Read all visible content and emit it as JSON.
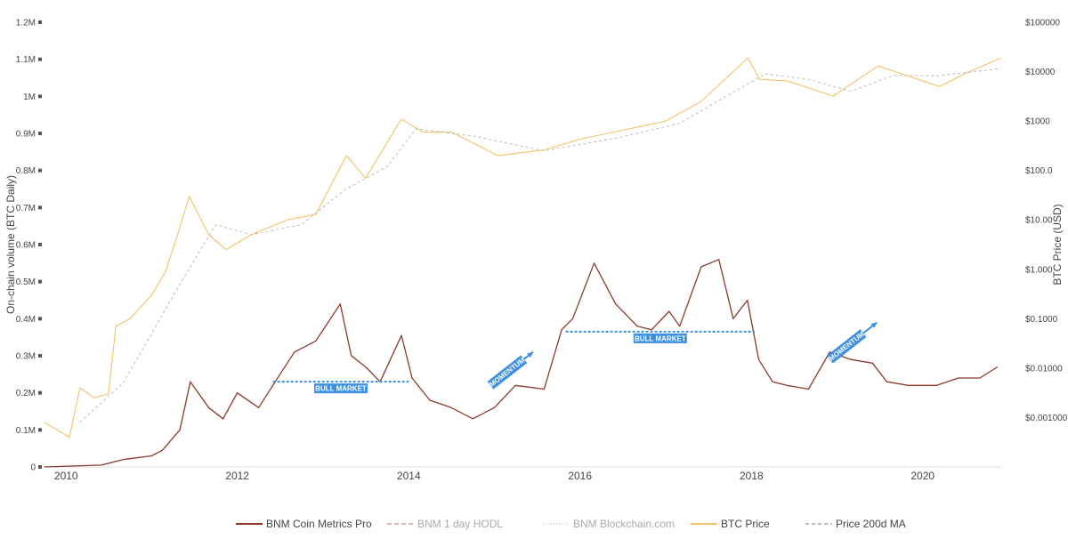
{
  "chart_data": {
    "type": "line",
    "title": "",
    "y_left_label": "On-chain volume (BTC Daily)",
    "y_right_label": "BTC Price (USD)",
    "x_range": [
      "2009-10-01",
      "2020-12-01"
    ],
    "x_ticks": [
      "2010",
      "2012",
      "2014",
      "2016",
      "2018",
      "2020"
    ],
    "y_left_range": [
      0,
      1200000
    ],
    "y_left_ticks": [
      "0",
      "0.1M",
      "0.2M",
      "0.3M",
      "0.4M",
      "0.5M",
      "0.6M",
      "0.7M",
      "0.8M",
      "0.9M",
      "1M",
      "1.1M",
      "1.2M"
    ],
    "y_right_scale": "log",
    "y_right_range": [
      0.0001,
      100000
    ],
    "y_right_ticks": [
      "$0.001000",
      "$0.01000",
      "$0.1000",
      "$1.000",
      "$10.00",
      "$100.0",
      "$1000",
      "$10000",
      "$100000"
    ],
    "grid": false,
    "legend_position": "bottom",
    "colors": {
      "bnm_coin_metrics": "#8b3a2a",
      "btc_price": "#f3c26b",
      "price_200d": "#bbbbbb",
      "annotation": "#3d8fe0"
    },
    "series": [
      {
        "name": "BNM Coin Metrics Pro",
        "axis": "left",
        "points": [
          [
            "2009-10-01",
            0
          ],
          [
            "2010-06-01",
            5000
          ],
          [
            "2010-09-01",
            20000
          ],
          [
            "2011-01-01",
            30000
          ],
          [
            "2011-02-15",
            45000
          ],
          [
            "2011-05-01",
            100000
          ],
          [
            "2011-06-15",
            230000
          ],
          [
            "2011-09-01",
            160000
          ],
          [
            "2011-11-01",
            130000
          ],
          [
            "2012-01-01",
            200000
          ],
          [
            "2012-04-01",
            160000
          ],
          [
            "2012-07-01",
            250000
          ],
          [
            "2012-09-01",
            310000
          ],
          [
            "2012-12-01",
            340000
          ],
          [
            "2013-03-15",
            440000
          ],
          [
            "2013-05-01",
            300000
          ],
          [
            "2013-07-01",
            270000
          ],
          [
            "2013-09-01",
            230000
          ],
          [
            "2013-12-01",
            355000
          ],
          [
            "2014-01-15",
            240000
          ],
          [
            "2014-04-01",
            180000
          ],
          [
            "2014-07-01",
            160000
          ],
          [
            "2014-10-01",
            130000
          ],
          [
            "2015-01-01",
            160000
          ],
          [
            "2015-04-01",
            220000
          ],
          [
            "2015-08-01",
            210000
          ],
          [
            "2015-10-15",
            370000
          ],
          [
            "2015-12-01",
            400000
          ],
          [
            "2016-03-01",
            550000
          ],
          [
            "2016-06-01",
            440000
          ],
          [
            "2016-09-01",
            380000
          ],
          [
            "2016-11-01",
            370000
          ],
          [
            "2017-01-15",
            420000
          ],
          [
            "2017-03-01",
            380000
          ],
          [
            "2017-06-01",
            540000
          ],
          [
            "2017-08-15",
            560000
          ],
          [
            "2017-10-15",
            400000
          ],
          [
            "2017-12-15",
            450000
          ],
          [
            "2018-02-01",
            290000
          ],
          [
            "2018-04-01",
            230000
          ],
          [
            "2018-06-01",
            220000
          ],
          [
            "2018-09-01",
            210000
          ],
          [
            "2018-12-01",
            310000
          ],
          [
            "2019-03-01",
            290000
          ],
          [
            "2019-06-01",
            280000
          ],
          [
            "2019-08-01",
            230000
          ],
          [
            "2019-11-01",
            220000
          ],
          [
            "2020-03-01",
            220000
          ],
          [
            "2020-06-01",
            240000
          ],
          [
            "2020-09-01",
            240000
          ],
          [
            "2020-11-15",
            270000
          ]
        ]
      },
      {
        "name": "BNM 1 day HODL",
        "axis": "left",
        "visible": false,
        "points": []
      },
      {
        "name": "BNM Blockchain.com",
        "axis": "left",
        "visible": false,
        "points": []
      },
      {
        "name": "BTC Price",
        "axis": "right",
        "points": [
          [
            "2009-10-01",
            0.0008
          ],
          [
            "2010-01-15",
            0.0004
          ],
          [
            "2010-03-01",
            0.004
          ],
          [
            "2010-05-01",
            0.0025
          ],
          [
            "2010-07-01",
            0.003
          ],
          [
            "2010-08-01",
            0.07
          ],
          [
            "2010-10-01",
            0.1
          ],
          [
            "2011-01-01",
            0.3
          ],
          [
            "2011-03-01",
            0.9
          ],
          [
            "2011-05-01",
            7
          ],
          [
            "2011-06-10",
            30
          ],
          [
            "2011-09-01",
            5
          ],
          [
            "2011-11-15",
            2.5
          ],
          [
            "2012-03-01",
            5
          ],
          [
            "2012-08-01",
            10
          ],
          [
            "2012-12-01",
            13
          ],
          [
            "2013-04-10",
            200
          ],
          [
            "2013-07-01",
            70
          ],
          [
            "2013-11-30",
            1100
          ],
          [
            "2014-03-01",
            600
          ],
          [
            "2014-07-01",
            600
          ],
          [
            "2015-01-15",
            200
          ],
          [
            "2015-08-01",
            260
          ],
          [
            "2016-01-01",
            430
          ],
          [
            "2016-07-01",
            650
          ],
          [
            "2017-01-01",
            1000
          ],
          [
            "2017-06-01",
            2500
          ],
          [
            "2017-12-17",
            19000
          ],
          [
            "2018-02-05",
            7000
          ],
          [
            "2018-06-01",
            6500
          ],
          [
            "2018-12-15",
            3200
          ],
          [
            "2019-06-26",
            13000
          ],
          [
            "2020-03-12",
            5000
          ],
          [
            "2020-07-01",
            9200
          ],
          [
            "2020-11-30",
            19000
          ]
        ]
      },
      {
        "name": "Price 200d MA",
        "axis": "right",
        "points": [
          [
            "2010-03-01",
            0.0008
          ],
          [
            "2010-09-01",
            0.005
          ],
          [
            "2011-01-01",
            0.05
          ],
          [
            "2011-05-01",
            0.5
          ],
          [
            "2011-10-01",
            8
          ],
          [
            "2012-03-01",
            5
          ],
          [
            "2012-10-01",
            8
          ],
          [
            "2013-04-01",
            40
          ],
          [
            "2013-10-01",
            120
          ],
          [
            "2014-02-01",
            700
          ],
          [
            "2014-10-01",
            500
          ],
          [
            "2015-08-01",
            250
          ],
          [
            "2016-06-01",
            450
          ],
          [
            "2017-03-01",
            900
          ],
          [
            "2017-10-01",
            3500
          ],
          [
            "2018-03-01",
            9000
          ],
          [
            "2018-09-01",
            7000
          ],
          [
            "2019-03-01",
            4000
          ],
          [
            "2019-09-01",
            8500
          ],
          [
            "2020-03-01",
            8200
          ],
          [
            "2020-11-30",
            11500
          ]
        ]
      }
    ],
    "annotations": [
      {
        "type": "hline",
        "label": "BULL MARKET",
        "from": "2012-06-01",
        "to": "2014-01-01",
        "value": 230000
      },
      {
        "type": "hline",
        "label": "BULL MARKET",
        "from": "2015-11-01",
        "to": "2018-01-15",
        "value": 365000
      },
      {
        "type": "arrow",
        "label": "MOMENTUM",
        "from": [
          "2014-12-15",
          220000
        ],
        "to": [
          "2015-06-15",
          310000
        ]
      },
      {
        "type": "arrow",
        "label": "MOMENTUM",
        "from": [
          "2018-12-01",
          290000
        ],
        "to": [
          "2019-06-20",
          390000
        ]
      }
    ]
  }
}
